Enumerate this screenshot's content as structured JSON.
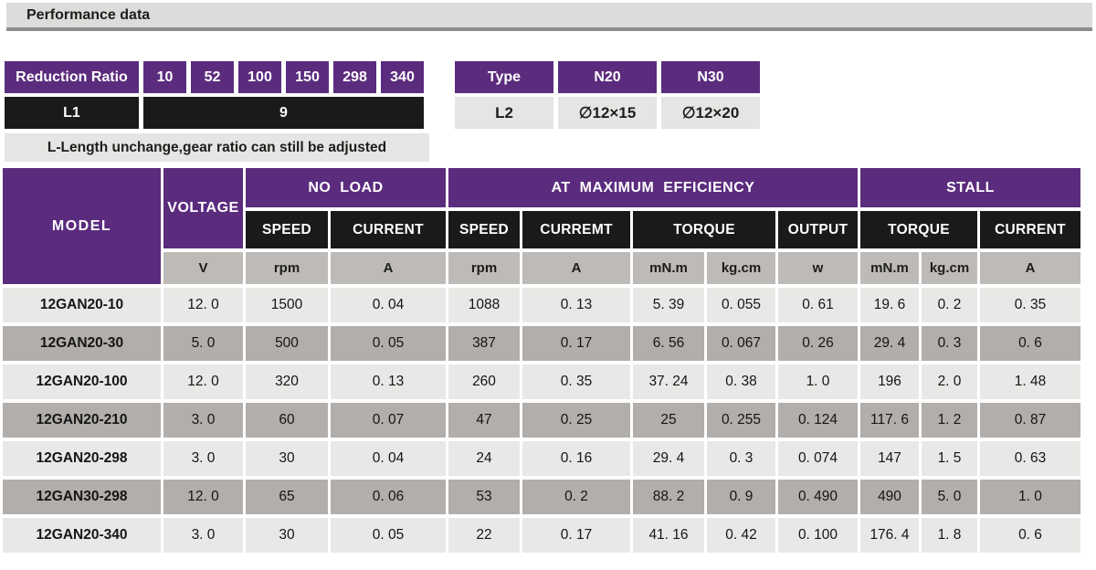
{
  "title": "Performance data",
  "colors": {
    "accent_purple": "#5b2c7e",
    "header_black": "#1a1a1a",
    "titlebar_gray": "#dcdcda",
    "titlebar_border": "#8e8e90",
    "unit_row_gray": "#bdbab7",
    "row_light": "#e9e8e6",
    "row_dark": "#b1aeab",
    "note_gray": "#e6e5e3"
  },
  "reduction_table": {
    "label": "Reduction Ratio",
    "ratios": [
      "10",
      "52",
      "100",
      "150",
      "298",
      "340"
    ],
    "l1_label": "L1",
    "l1_value": "9",
    "note": "L-Length unchange,gear ratio can still be adjusted"
  },
  "type_table": {
    "headers": [
      "Type",
      "N20",
      "N30"
    ],
    "row": [
      "L2",
      "∅12×15",
      "∅12×20"
    ]
  },
  "main_table": {
    "groups": {
      "model": "MODEL",
      "voltage": "VOLTAGE",
      "no_load": "NO LOAD",
      "max_eff": "AT MAXIMUM EFFICIENCY",
      "stall": "STALL"
    },
    "sub": {
      "no_load_speed": "SPEED",
      "no_load_current": "CURRENT",
      "me_speed": "SPEED",
      "me_current": "CURREMT",
      "me_torque": "TORQUE",
      "output": "OUTPUT",
      "stall_torque": "TORQUE",
      "stall_current": "CURRENT"
    },
    "units": {
      "voltage": "V",
      "no_load_speed": "rpm",
      "no_load_current": "A",
      "me_speed": "rpm",
      "me_current": "A",
      "me_torque_mnm": "mN.m",
      "me_torque_kgcm": "kg.cm",
      "output": "w",
      "stall_torque_mnm": "mN.m",
      "stall_torque_kgcm": "kg.cm",
      "stall_current": "A"
    },
    "rows": [
      {
        "model": "12GAN20-10",
        "values": [
          "12. 0",
          "1500",
          "0. 04",
          "1088",
          "0. 13",
          "5. 39",
          "0. 055",
          "0. 61",
          "19. 6",
          "0. 2",
          "0. 35"
        ]
      },
      {
        "model": "12GAN20-30",
        "values": [
          "5. 0",
          "500",
          "0. 05",
          "387",
          "0. 17",
          "6. 56",
          "0. 067",
          "0. 26",
          "29. 4",
          "0. 3",
          "0. 6"
        ]
      },
      {
        "model": "12GAN20-100",
        "values": [
          "12. 0",
          "320",
          "0. 13",
          "260",
          "0. 35",
          "37. 24",
          "0. 38",
          "1. 0",
          "196",
          "2. 0",
          "1. 48"
        ]
      },
      {
        "model": "12GAN20-210",
        "values": [
          "3. 0",
          "60",
          "0. 07",
          "47",
          "0. 25",
          "25",
          "0. 255",
          "0. 124",
          "117. 6",
          "1. 2",
          "0. 87"
        ]
      },
      {
        "model": "12GAN20-298",
        "values": [
          "3. 0",
          "30",
          "0. 04",
          "24",
          "0. 16",
          "29. 4",
          "0. 3",
          "0. 074",
          "147",
          "1. 5",
          "0. 63"
        ]
      },
      {
        "model": "12GAN30-298",
        "values": [
          "12. 0",
          "65",
          "0. 06",
          "53",
          "0. 2",
          "88. 2",
          "0. 9",
          "0. 490",
          "490",
          "5. 0",
          "1. 0"
        ]
      },
      {
        "model": "12GAN20-340",
        "values": [
          "3. 0",
          "30",
          "0. 05",
          "22",
          "0. 17",
          "41. 16",
          "0. 42",
          "0. 100",
          "176. 4",
          "1. 8",
          "0. 6"
        ]
      }
    ]
  }
}
